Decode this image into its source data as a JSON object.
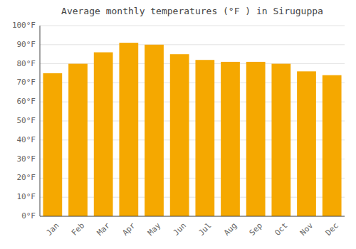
{
  "chart_data": {
    "type": "bar",
    "title": "Average monthly temperatures (°F ) in Siruguppa",
    "categories": [
      "Jan",
      "Feb",
      "Mar",
      "Apr",
      "May",
      "Jun",
      "Jul",
      "Aug",
      "Sep",
      "Oct",
      "Nov",
      "Dec"
    ],
    "values": [
      75,
      80,
      86,
      91,
      90,
      85,
      82,
      81,
      81,
      80,
      76,
      74
    ],
    "color": "#F5A800",
    "ylim": [
      0,
      100
    ],
    "yticks": [
      {
        "value": 0,
        "label": "0°F"
      },
      {
        "value": 10,
        "label": "10°F"
      },
      {
        "value": 20,
        "label": "20°F"
      },
      {
        "value": 30,
        "label": "30°F"
      },
      {
        "value": 40,
        "label": "40°F"
      },
      {
        "value": 50,
        "label": "50°F"
      },
      {
        "value": 60,
        "label": "60°F"
      },
      {
        "value": 70,
        "label": "70°F"
      },
      {
        "value": 80,
        "label": "80°F"
      },
      {
        "value": 90,
        "label": "90°F"
      },
      {
        "value": 100,
        "label": "100°F"
      }
    ],
    "grid": true
  }
}
